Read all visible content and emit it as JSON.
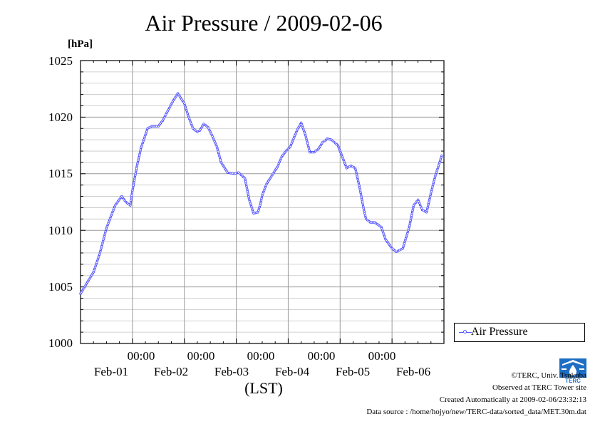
{
  "page": {
    "title": "Air Pressure / 2009-02-06",
    "unit": "[hPa]",
    "xlabel": "(LST)",
    "legend_label": "Air Pressure",
    "credits": [
      "©TERC, Univ. Tsukuba",
      "Observed at TERC Tower site",
      "Created Automatically at 2009-02-06/23:32:13",
      "Data source : /home/hojyo/new/TERC-data/sorted_data/MET.30m.dat"
    ],
    "logo_text": "TERC",
    "yticks": [
      "1025",
      "1020",
      "1015",
      "1010",
      "1005",
      "1000"
    ],
    "xticks": [
      {
        "time": "00:00",
        "date": "Feb-01"
      },
      {
        "time": "00:00",
        "date": "Feb-02"
      },
      {
        "time": "00:00",
        "date": "Feb-03"
      },
      {
        "time": "00:00",
        "date": "Feb-04"
      },
      {
        "time": "00:00",
        "date": "Feb-05"
      },
      {
        "time": "00:00",
        "date": "Feb-06"
      }
    ]
  },
  "chart_data": {
    "type": "line",
    "title": "Air Pressure / 2009-02-06",
    "xlabel": "(LST)",
    "ylabel": "[hPa]",
    "ylim": [
      1000,
      1025
    ],
    "y_minor_step": 1,
    "grid": true,
    "legend_position": "right",
    "colors": {
      "series": "#4a4aff"
    },
    "x_tick_dates": [
      "Feb-01",
      "Feb-02",
      "Feb-03",
      "Feb-04",
      "Feb-05",
      "Feb-06"
    ],
    "x_tick_time": "00:00",
    "series": [
      {
        "name": "Air Pressure",
        "x": [
          "2009-01-31 00:00",
          "2009-01-31 06:00",
          "2009-01-31 09:00",
          "2009-01-31 12:00",
          "2009-01-31 16:00",
          "2009-01-31 19:00",
          "2009-01-31 21:00",
          "2009-01-31 23:00",
          "2009-02-01 00:00",
          "2009-02-01 02:00",
          "2009-02-01 04:00",
          "2009-02-01 07:00",
          "2009-02-01 09:00",
          "2009-02-01 11:00",
          "2009-02-01 12:00",
          "2009-02-01 14:00",
          "2009-02-01 17:00",
          "2009-02-01 19:00",
          "2009-02-01 21:00",
          "2009-02-02 00:00",
          "2009-02-02 02:00",
          "2009-02-02 04:00",
          "2009-02-02 06:00",
          "2009-02-02 07:00",
          "2009-02-02 09:00",
          "2009-02-02 11:00",
          "2009-02-02 13:00",
          "2009-02-02 15:00",
          "2009-02-02 17:00",
          "2009-02-02 20:00",
          "2009-02-02 23:00",
          "2009-02-03 01:00",
          "2009-02-03 04:00",
          "2009-02-03 06:00",
          "2009-02-03 08:00",
          "2009-02-03 10:00",
          "2009-02-03 11:00",
          "2009-02-03 12:00",
          "2009-02-03 14:00",
          "2009-02-03 17:00",
          "2009-02-03 19:00",
          "2009-02-03 21:00",
          "2009-02-03 23:00",
          "2009-02-04 01:00",
          "2009-02-04 04:00",
          "2009-02-04 06:00",
          "2009-02-04 08:00",
          "2009-02-04 10:00",
          "2009-02-04 12:00",
          "2009-02-04 14:00",
          "2009-02-04 16:00",
          "2009-02-04 17:00",
          "2009-02-04 18:00",
          "2009-02-04 20:00",
          "2009-02-04 23:00",
          "2009-02-05 00:00",
          "2009-02-05 01:00",
          "2009-02-05 03:00",
          "2009-02-05 05:00",
          "2009-02-05 07:00",
          "2009-02-05 09:00",
          "2009-02-05 11:00",
          "2009-02-05 12:00",
          "2009-02-05 14:00",
          "2009-02-05 16:00",
          "2009-02-05 19:00",
          "2009-02-05 21:00",
          "2009-02-06 00:00",
          "2009-02-06 02:00",
          "2009-02-06 05:00",
          "2009-02-06 08:00",
          "2009-02-06 10:00",
          "2009-02-06 12:00",
          "2009-02-06 14:00",
          "2009-02-06 16:00",
          "2009-02-06 18:00",
          "2009-02-06 20:00",
          "2009-02-06 23:00"
        ],
        "values": [
          1004.4,
          1006.3,
          1008.0,
          1010.2,
          1012.2,
          1013.0,
          1012.5,
          1012.2,
          1013.5,
          1015.6,
          1017.3,
          1019.0,
          1019.2,
          1019.2,
          1019.2,
          1019.7,
          1020.8,
          1021.5,
          1022.1,
          1021.2,
          1020.0,
          1019.0,
          1018.7,
          1018.8,
          1019.4,
          1019.1,
          1018.3,
          1017.4,
          1016.0,
          1015.1,
          1015.0,
          1015.1,
          1014.6,
          1012.7,
          1011.5,
          1011.6,
          1012.2,
          1013.1,
          1014.1,
          1015.0,
          1015.6,
          1016.5,
          1017.0,
          1017.4,
          1018.8,
          1019.5,
          1018.4,
          1016.9,
          1016.9,
          1017.2,
          1017.8,
          1017.9,
          1018.1,
          1018.0,
          1017.5,
          1017.0,
          1016.5,
          1015.5,
          1015.7,
          1015.5,
          1013.8,
          1011.8,
          1011.0,
          1010.7,
          1010.7,
          1010.3,
          1009.2,
          1008.4,
          1008.1,
          1008.4,
          1010.3,
          1012.2,
          1012.7,
          1011.8,
          1011.6,
          1013.3,
          1014.8,
          1016.6
        ]
      }
    ]
  }
}
